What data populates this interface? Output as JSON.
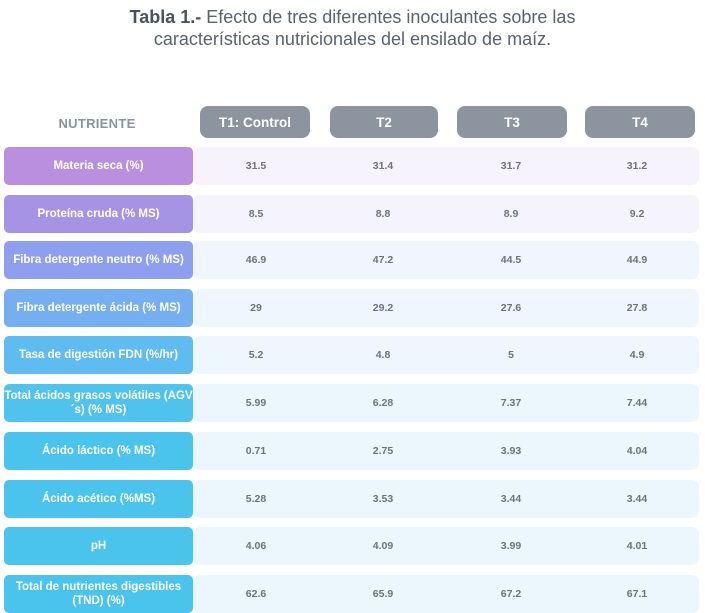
{
  "title": {
    "prefix": "Tabla 1.-",
    "line1": " Efecto de tres diferentes inoculantes sobre las",
    "line2": "características nutricionales del ensilado de maíz."
  },
  "header": {
    "nutrient_label": "NUTRIENTE",
    "columns": [
      "T1: Control",
      "T2",
      "T3",
      "T4"
    ]
  },
  "rows": [
    {
      "label": "Materia seca (%)",
      "values": [
        "31.5",
        "31.4",
        "31.7",
        "31.2"
      ],
      "color": "#bb8fe0"
    },
    {
      "label": "Proteína cruda (% MS)",
      "values": [
        "8.5",
        "8.8",
        "8.9",
        "9.2"
      ],
      "color": "#a593e4"
    },
    {
      "label": "Fibra detergente neutro (% MS)",
      "values": [
        "46.9",
        "47.2",
        "44.5",
        "44.9"
      ],
      "color": "#8f9ff0"
    },
    {
      "label": "Fibra detergente ácida (% MS)",
      "values": [
        "29",
        "29.2",
        "27.6",
        "27.8"
      ],
      "color": "#76aef2"
    },
    {
      "label": "Tasa de digestión FDN (%/hr)",
      "values": [
        "5.2",
        "4.8",
        "5",
        "4.9"
      ],
      "color": "#5ebcf0"
    },
    {
      "label": "Total ácidos grasos volátiles (AGV´s) (% MS)",
      "values": [
        "5.99",
        "6.28",
        "7.37",
        "7.44"
      ],
      "color": "#4fc2ee"
    },
    {
      "label": "Ácido láctico (% MS)",
      "values": [
        "0.71",
        "2.75",
        "3.93",
        "4.04"
      ],
      "color": "#4ac4ec"
    },
    {
      "label": "Ácido acético (%MS)",
      "values": [
        "5.28",
        "3.53",
        "3.44",
        "3.44"
      ],
      "color": "#4ac4ec"
    },
    {
      "label": "pH",
      "values": [
        "4.06",
        "4.09",
        "3.99",
        "4.01"
      ],
      "color": "#4ac4ec"
    },
    {
      "label": "Total de nutrientes digestibles (TND) (%)",
      "values": [
        "62.6",
        "65.9",
        "67.2",
        "67.1"
      ],
      "color": "#4ac4ec"
    }
  ]
}
